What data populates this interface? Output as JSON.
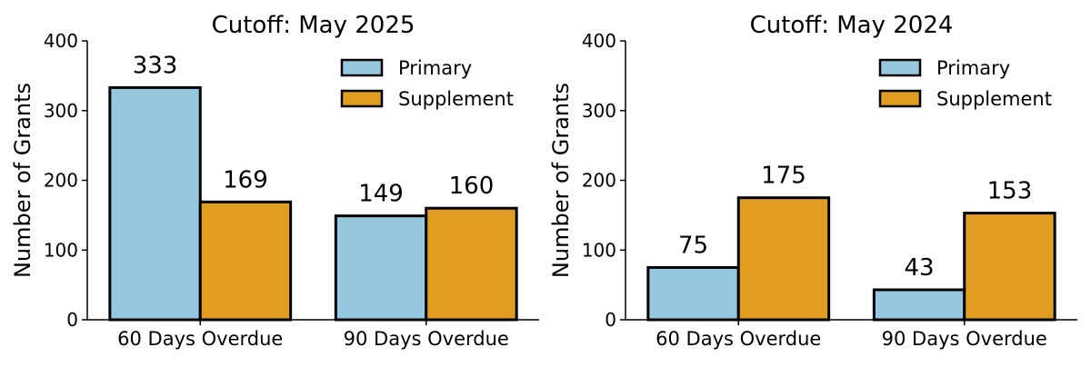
{
  "chart_data": [
    {
      "type": "bar",
      "title": "Cutoff: May 2025",
      "xlabel": "",
      "ylabel": "Number of Grants",
      "categories": [
        "60 Days Overdue",
        "90 Days Overdue"
      ],
      "series": [
        {
          "name": "Primary",
          "values": [
            333,
            149
          ],
          "color": "#95c8df"
        },
        {
          "name": "Supplement",
          "values": [
            169,
            160
          ],
          "color": "#e09d22"
        }
      ],
      "ylim": [
        0,
        400
      ],
      "yticks": [
        "0",
        "100",
        "200",
        "300",
        "400"
      ],
      "grid": false,
      "legend": "top-right"
    },
    {
      "type": "bar",
      "title": "Cutoff: May 2024",
      "xlabel": "",
      "ylabel": "Number of Grants",
      "categories": [
        "60 Days Overdue",
        "90 Days Overdue"
      ],
      "series": [
        {
          "name": "Primary",
          "values": [
            75,
            43
          ],
          "color": "#95c8df"
        },
        {
          "name": "Supplement",
          "values": [
            175,
            153
          ],
          "color": "#e09d22"
        }
      ],
      "ylim": [
        0,
        400
      ],
      "yticks": [
        "0",
        "100",
        "200",
        "300",
        "400"
      ],
      "grid": false,
      "legend": "top-right"
    }
  ]
}
